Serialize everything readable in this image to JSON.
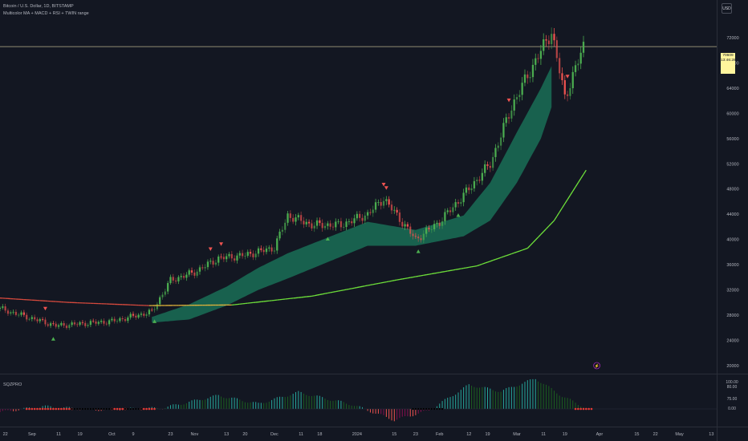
{
  "header": {
    "symbol": "Bitcoin / U.S. Dollar, 1D, BITSTAMP",
    "indicator": "Multicolor MA + MACD + RSI + TWIN range",
    "subpanel": "SQZPRO",
    "currency": "USD"
  },
  "last_price": {
    "value": "70609",
    "countdown": "13:46:28"
  },
  "colors": {
    "background": "#131722",
    "up": "#4caf50",
    "down": "#ef5350",
    "ma_green": "#6ee13a",
    "ma_red": "#d84a3d",
    "cloud": "#1e9e73",
    "price_line": "#b8b08a",
    "event": "#9c27b0"
  },
  "event_marker": {
    "x": "2024-03-31",
    "glyph": "⚡"
  },
  "chart_data": [
    {
      "type": "candlestick",
      "title": "Bitcoin / U.S. Dollar, 1D, BITSTAMP",
      "y_axis": {
        "ticks": [
          20000,
          24000,
          28000,
          32000,
          36000,
          40000,
          44000,
          48000,
          52000,
          56000,
          60000,
          64000,
          68000,
          72000
        ],
        "labels": [
          "20000",
          "24000",
          "28000",
          "32000",
          "36000",
          "40000",
          "44000",
          "48000",
          "52000",
          "56000",
          "60000",
          "64000",
          "68000",
          "72000"
        ],
        "range": [
          18700,
          75200
        ]
      },
      "x_axis": {
        "range": [
          "2023-08-20",
          "2024-05-15"
        ],
        "ticks": [
          "2023-08-22",
          "2023-09-01",
          "2023-09-11",
          "2023-09-19",
          "2023-10-01",
          "2023-10-09",
          "2023-10-23",
          "2023-11-01",
          "2023-11-13",
          "2023-11-20",
          "2023-12-01",
          "2023-12-11",
          "2023-12-18",
          "2024-01-01",
          "2024-01-15",
          "2024-01-23",
          "2024-02-01",
          "2024-02-12",
          "2024-02-19",
          "2024-03-01",
          "2024-03-11",
          "2024-03-19",
          "2024-04-01",
          "2024-04-15",
          "2024-04-22",
          "2024-05-01",
          "2024-05-13"
        ],
        "labels": [
          "22",
          "Sep",
          "11",
          "19",
          "Oct",
          "9",
          "23",
          "Nov",
          "13",
          "20",
          "Dec",
          "11",
          "18",
          "2024",
          "15",
          "23",
          "Feb",
          "12",
          "19",
          "Mar",
          "11",
          "19",
          "Apr",
          "15",
          "22",
          "May",
          "13"
        ]
      },
      "series": [
        {
          "name": "Price",
          "type": "candle",
          "x": [
            "2023-08-20",
            "2023-09-10",
            "2023-10-01",
            "2023-10-16",
            "2023-10-23",
            "2023-11-01",
            "2023-11-10",
            "2023-11-20",
            "2023-12-01",
            "2023-12-06",
            "2023-12-15",
            "2023-12-26",
            "2024-01-05",
            "2024-01-11",
            "2024-01-23",
            "2024-02-01",
            "2024-02-10",
            "2024-02-20",
            "2024-02-28",
            "2024-03-05",
            "2024-03-14",
            "2024-03-19",
            "2024-03-26"
          ],
          "close": [
            29000,
            26300,
            27000,
            28500,
            33500,
            34800,
            37000,
            37500,
            38700,
            43800,
            42300,
            42300,
            44000,
            46500,
            40000,
            42800,
            47000,
            52000,
            61000,
            66000,
            73000,
            62500,
            70600
          ]
        },
        {
          "name": "Moving Average",
          "type": "line",
          "x": [
            "2023-08-20",
            "2023-09-15",
            "2023-10-15",
            "2023-11-15",
            "2023-12-15",
            "2024-01-15",
            "2024-02-15",
            "2024-03-05",
            "2024-03-15",
            "2024-03-27"
          ],
          "y": [
            30700,
            30000,
            29500,
            29600,
            31000,
            33500,
            35800,
            38600,
            43000,
            51000
          ]
        },
        {
          "name": "Cloud",
          "type": "area",
          "x": [
            "2023-10-16",
            "2023-10-30",
            "2023-11-13",
            "2023-11-25",
            "2023-12-06",
            "2024-01-05",
            "2024-01-23",
            "2024-02-10",
            "2024-02-20",
            "2024-03-01",
            "2024-03-10",
            "2024-03-14"
          ],
          "upper": [
            27700,
            29700,
            32500,
            35500,
            37800,
            42800,
            41500,
            43800,
            49000,
            57000,
            64000,
            67500
          ],
          "lower": [
            26800,
            27300,
            29500,
            32000,
            33800,
            39000,
            39000,
            40500,
            43000,
            49000,
            56000,
            61000
          ]
        }
      ],
      "signals": {
        "buy": [
          "2023-09-09",
          "2023-10-17",
          "2023-12-21",
          "2024-01-24",
          "2024-02-08"
        ],
        "sell": [
          "2023-09-06",
          "2023-11-07",
          "2023-11-11",
          "2024-01-11",
          "2024-01-12",
          "2024-02-27",
          "2024-03-20"
        ]
      }
    },
    {
      "type": "histogram",
      "title": "SQZPRO",
      "y_axis": {
        "labels": [
          "100.00",
          "80.00",
          "75.00",
          "0.00"
        ]
      },
      "series": [
        {
          "name": "Momentum",
          "x": [
            "2023-08-20",
            "2023-09-05",
            "2023-09-25",
            "2023-10-20",
            "2023-11-10",
            "2023-11-25",
            "2023-12-10",
            "2023-12-30",
            "2024-01-15",
            "2024-01-28",
            "2024-02-12",
            "2024-02-24",
            "2024-03-08",
            "2024-03-18",
            "2024-03-27"
          ],
          "y": [
            -10,
            8,
            -3,
            3,
            42,
            16,
            52,
            14,
            -35,
            -5,
            75,
            55,
            95,
            40,
            3
          ]
        }
      ],
      "squeeze_dots": {
        "red": [
          [
            "2023-08-30",
            "2023-09-16"
          ],
          [
            "2023-10-01",
            "2023-10-06"
          ],
          [
            "2023-10-12",
            "2023-10-17"
          ],
          [
            "2024-03-23",
            "2024-03-29"
          ]
        ],
        "dark": [
          [
            "2023-09-16",
            "2023-10-01"
          ],
          [
            "2023-10-06",
            "2023-10-12"
          ],
          [
            "2024-01-22",
            "2024-02-02"
          ]
        ]
      }
    }
  ]
}
